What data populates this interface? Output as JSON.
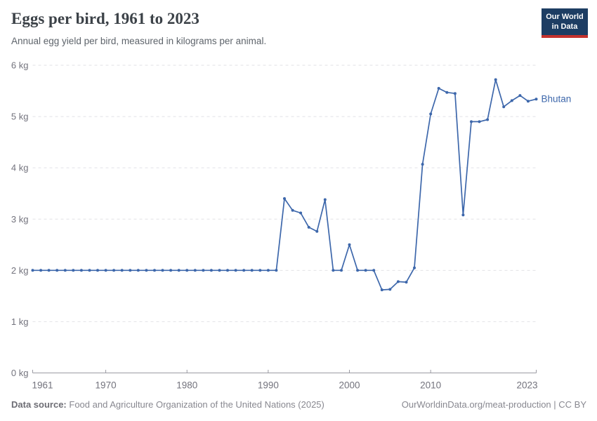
{
  "header": {
    "title": "Eggs per bird, 1961 to 2023",
    "subtitle": "Annual egg yield per bird, measured in kilograms per animal.",
    "logo": {
      "line1": "Our World",
      "line2": "in Data"
    }
  },
  "footer": {
    "source_label": "Data source:",
    "source_text": "Food and Agriculture Organization of the United Nations (2025)",
    "citation": "OurWorldinData.org/meat-production | CC BY"
  },
  "colors": {
    "line": "#3d67ab",
    "gridline": "#e2e2e6",
    "axis": "#9b9ba3",
    "tick_label": "#73737d",
    "logo_bg": "#1d3d63",
    "logo_stripe": "#c5322d"
  },
  "chart_data": {
    "type": "line",
    "title": "Eggs per bird, 1961 to 2023",
    "subtitle": "Annual egg yield per bird, measured in kilograms per animal.",
    "xlabel": "",
    "ylabel": "kilograms per animal",
    "ylim": [
      0,
      6
    ],
    "grid": "horizontal-dashed",
    "legend": "series-end-label",
    "yticks": [
      {
        "v": 0,
        "label": "0 kg"
      },
      {
        "v": 1,
        "label": "1 kg"
      },
      {
        "v": 2,
        "label": "2 kg"
      },
      {
        "v": 3,
        "label": "3 kg"
      },
      {
        "v": 4,
        "label": "4 kg"
      },
      {
        "v": 5,
        "label": "5 kg"
      },
      {
        "v": 6,
        "label": "6 kg"
      }
    ],
    "xticks": [
      {
        "v": 1961,
        "label": "1961"
      },
      {
        "v": 1970,
        "label": "1970"
      },
      {
        "v": 1980,
        "label": "1980"
      },
      {
        "v": 1990,
        "label": "1990"
      },
      {
        "v": 2000,
        "label": "2000"
      },
      {
        "v": 2010,
        "label": "2010"
      },
      {
        "v": 2023,
        "label": "2023"
      }
    ],
    "x": [
      1961,
      1962,
      1963,
      1964,
      1965,
      1966,
      1967,
      1968,
      1969,
      1970,
      1971,
      1972,
      1973,
      1974,
      1975,
      1976,
      1977,
      1978,
      1979,
      1980,
      1981,
      1982,
      1983,
      1984,
      1985,
      1986,
      1987,
      1988,
      1989,
      1990,
      1991,
      1992,
      1993,
      1994,
      1995,
      1996,
      1997,
      1998,
      1999,
      2000,
      2001,
      2002,
      2003,
      2004,
      2005,
      2006,
      2007,
      2008,
      2009,
      2010,
      2011,
      2012,
      2013,
      2014,
      2015,
      2016,
      2017,
      2018,
      2019,
      2020,
      2021,
      2022,
      2023
    ],
    "series": [
      {
        "name": "Bhutan",
        "color": "#3d67ab",
        "values": [
          2,
          2,
          2,
          2,
          2,
          2,
          2,
          2,
          2,
          2,
          2,
          2,
          2,
          2,
          2,
          2,
          2,
          2,
          2,
          2,
          2,
          2,
          2,
          2,
          2,
          2,
          2,
          2,
          2,
          2,
          2,
          3.4,
          3.17,
          3.12,
          2.84,
          2.76,
          3.38,
          2,
          2,
          2.5,
          2,
          2,
          2,
          1.62,
          1.63,
          1.78,
          1.77,
          2.05,
          4.07,
          5.05,
          5.55,
          5.47,
          5.45,
          3.08,
          4.9,
          4.9,
          4.94,
          5.72,
          5.19,
          5.31,
          5.41,
          5.3,
          5.34
        ]
      }
    ]
  }
}
